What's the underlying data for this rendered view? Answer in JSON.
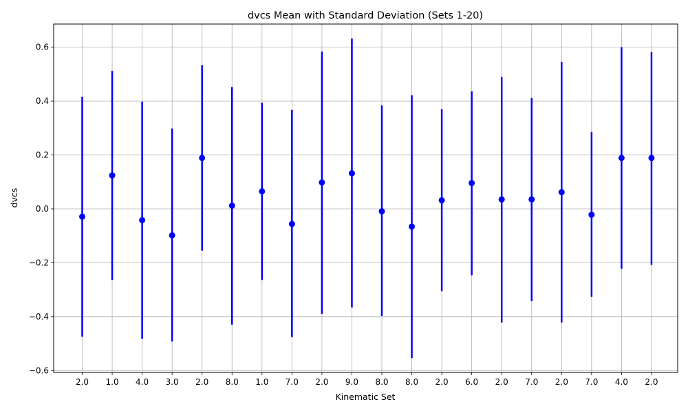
{
  "chart_data": {
    "type": "scatter",
    "title": "dvcs Mean with Standard Deviation (Sets 1-20)",
    "xlabel": "Kinematic Set",
    "ylabel": "dvcs",
    "categories": [
      "2.0",
      "1.0",
      "4.0",
      "3.0",
      "2.0",
      "8.0",
      "1.0",
      "7.0",
      "2.0",
      "9.0",
      "8.0",
      "8.0",
      "2.0",
      "6.0",
      "2.0",
      "7.0",
      "2.0",
      "7.0",
      "4.0",
      "2.0"
    ],
    "series": [
      {
        "mean": [
          -0.029,
          0.124,
          -0.042,
          -0.098,
          0.189,
          0.012,
          0.065,
          -0.056,
          0.098,
          0.132,
          -0.009,
          -0.066,
          0.032,
          0.096,
          0.035,
          0.035,
          0.062,
          -0.022,
          0.189,
          0.189
        ],
        "lower": [
          -0.474,
          -0.264,
          -0.482,
          -0.492,
          -0.155,
          -0.43,
          -0.264,
          -0.476,
          -0.39,
          -0.366,
          -0.398,
          -0.554,
          -0.306,
          -0.246,
          -0.422,
          -0.342,
          -0.422,
          -0.326,
          -0.222,
          -0.208
        ],
        "upper": [
          0.416,
          0.512,
          0.398,
          0.298,
          0.533,
          0.452,
          0.394,
          0.368,
          0.584,
          0.632,
          0.384,
          0.422,
          0.37,
          0.436,
          0.49,
          0.412,
          0.546,
          0.286,
          0.6,
          0.582
        ]
      }
    ],
    "yticks": [
      "0.6",
      "0.4",
      "0.2",
      "0.0",
      "−0.2",
      "−0.4",
      "−0.6"
    ],
    "ytick_values": [
      0.6,
      0.4,
      0.2,
      0.0,
      -0.2,
      -0.4,
      -0.6
    ],
    "ylim": [
      -0.607,
      0.686
    ],
    "grid": true,
    "marker_color": "#0000ff",
    "grid_color": "#b0b0b0"
  }
}
